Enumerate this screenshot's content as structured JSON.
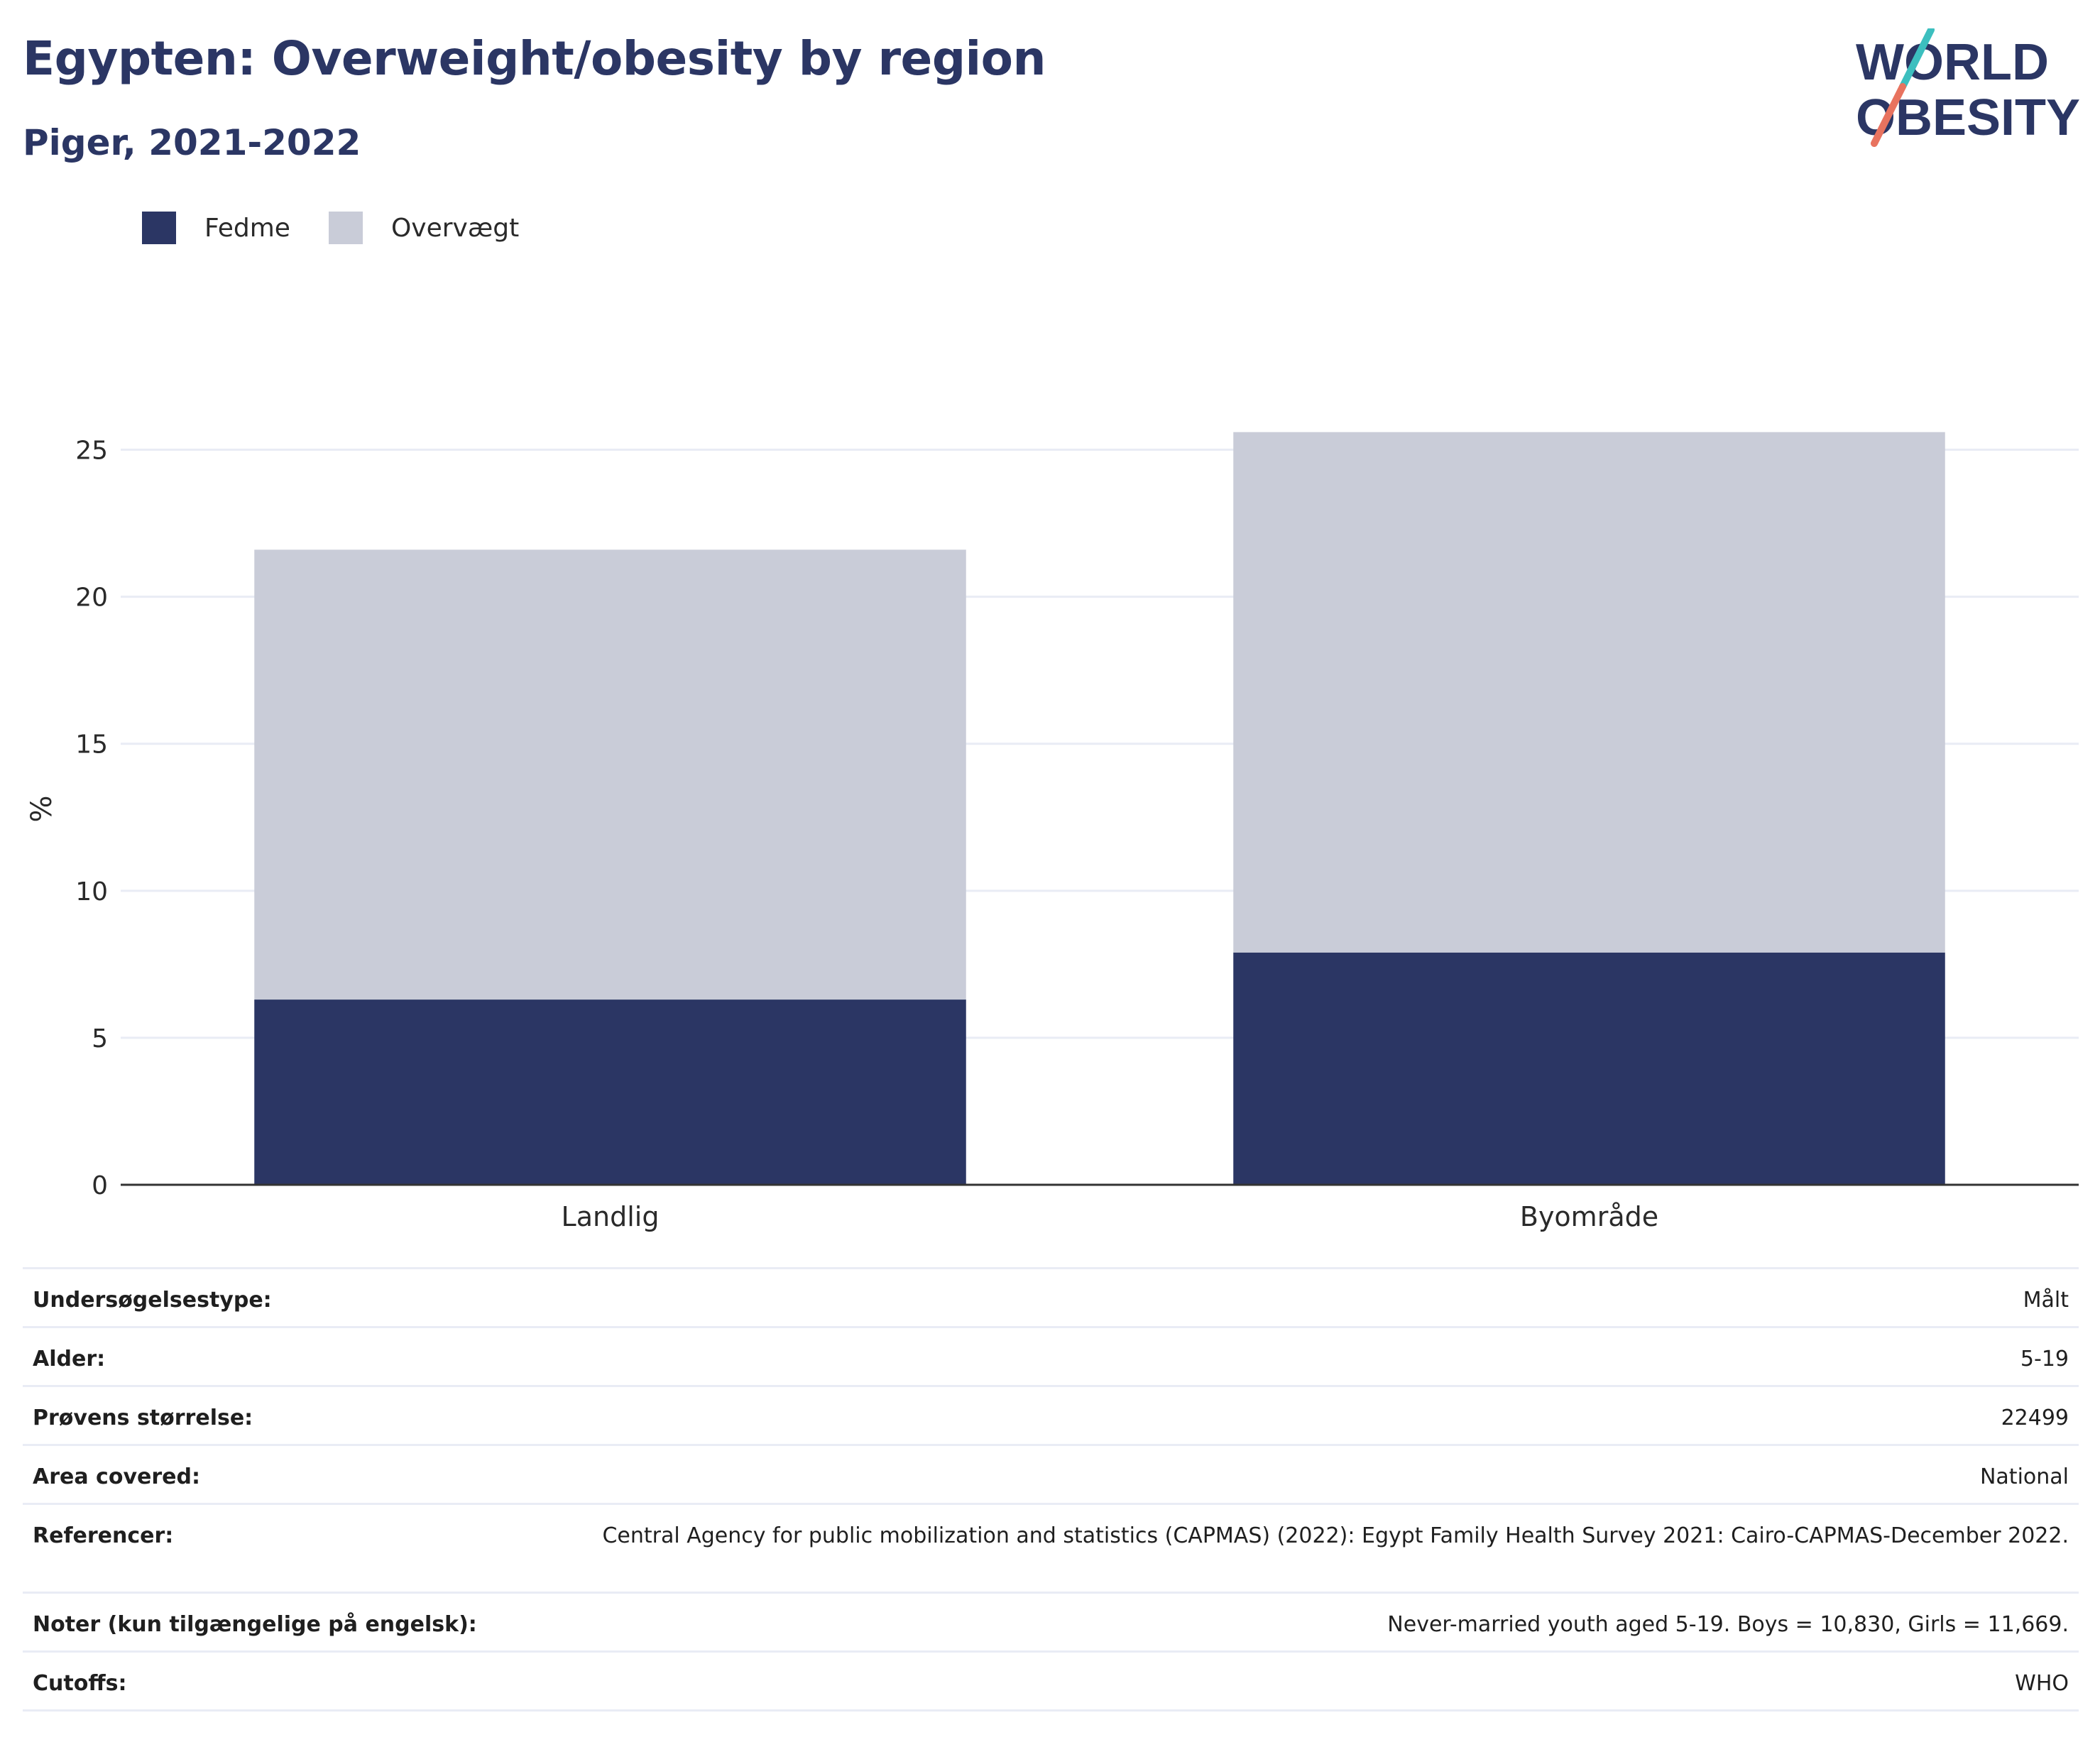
{
  "header": {
    "title": "Egypten: Overweight/obesity by region",
    "subtitle": "Piger, 2021-2022"
  },
  "logo": {
    "line1": "WORLD",
    "line2": "OBESITY",
    "accent_colors": [
      "#3cbfbf",
      "#e8735f"
    ]
  },
  "colors": {
    "obesity": "#2b3664",
    "overweight": "#c9ccd8",
    "title": "#2b3664",
    "grid": "#e9ecf5",
    "axis": "#333333"
  },
  "chart_data": {
    "type": "bar",
    "stacked": true,
    "categories": [
      "Landlig",
      "Byområde"
    ],
    "series": [
      {
        "name": "Fedme",
        "values": [
          6.3,
          7.9
        ]
      },
      {
        "name": "Overvægt",
        "values": [
          15.3,
          17.7
        ]
      }
    ],
    "ylabel": "%",
    "xlabel": "",
    "ylim": [
      0,
      27.5
    ],
    "yticks": [
      0,
      5,
      10,
      15,
      20,
      25
    ],
    "grid": true,
    "legend_position": "top-left"
  },
  "info": [
    {
      "label": "Undersøgelsestype:",
      "value": "Målt"
    },
    {
      "label": "Alder:",
      "value": "5-19"
    },
    {
      "label": "Prøvens størrelse:",
      "value": "22499"
    },
    {
      "label": "Area covered:",
      "value": "National"
    },
    {
      "label": "Referencer:",
      "value": "Central Agency for public mobilization and statistics (CAPMAS) (2022): Egypt Family Health Survey 2021: Cairo-CAPMAS-December 2022."
    },
    {
      "label": "Noter (kun tilgængelige på engelsk):",
      "value": "Never-married youth aged 5-19. Boys = 10,830, Girls = 11,669."
    },
    {
      "label": "Cutoffs:",
      "value": "WHO"
    }
  ]
}
